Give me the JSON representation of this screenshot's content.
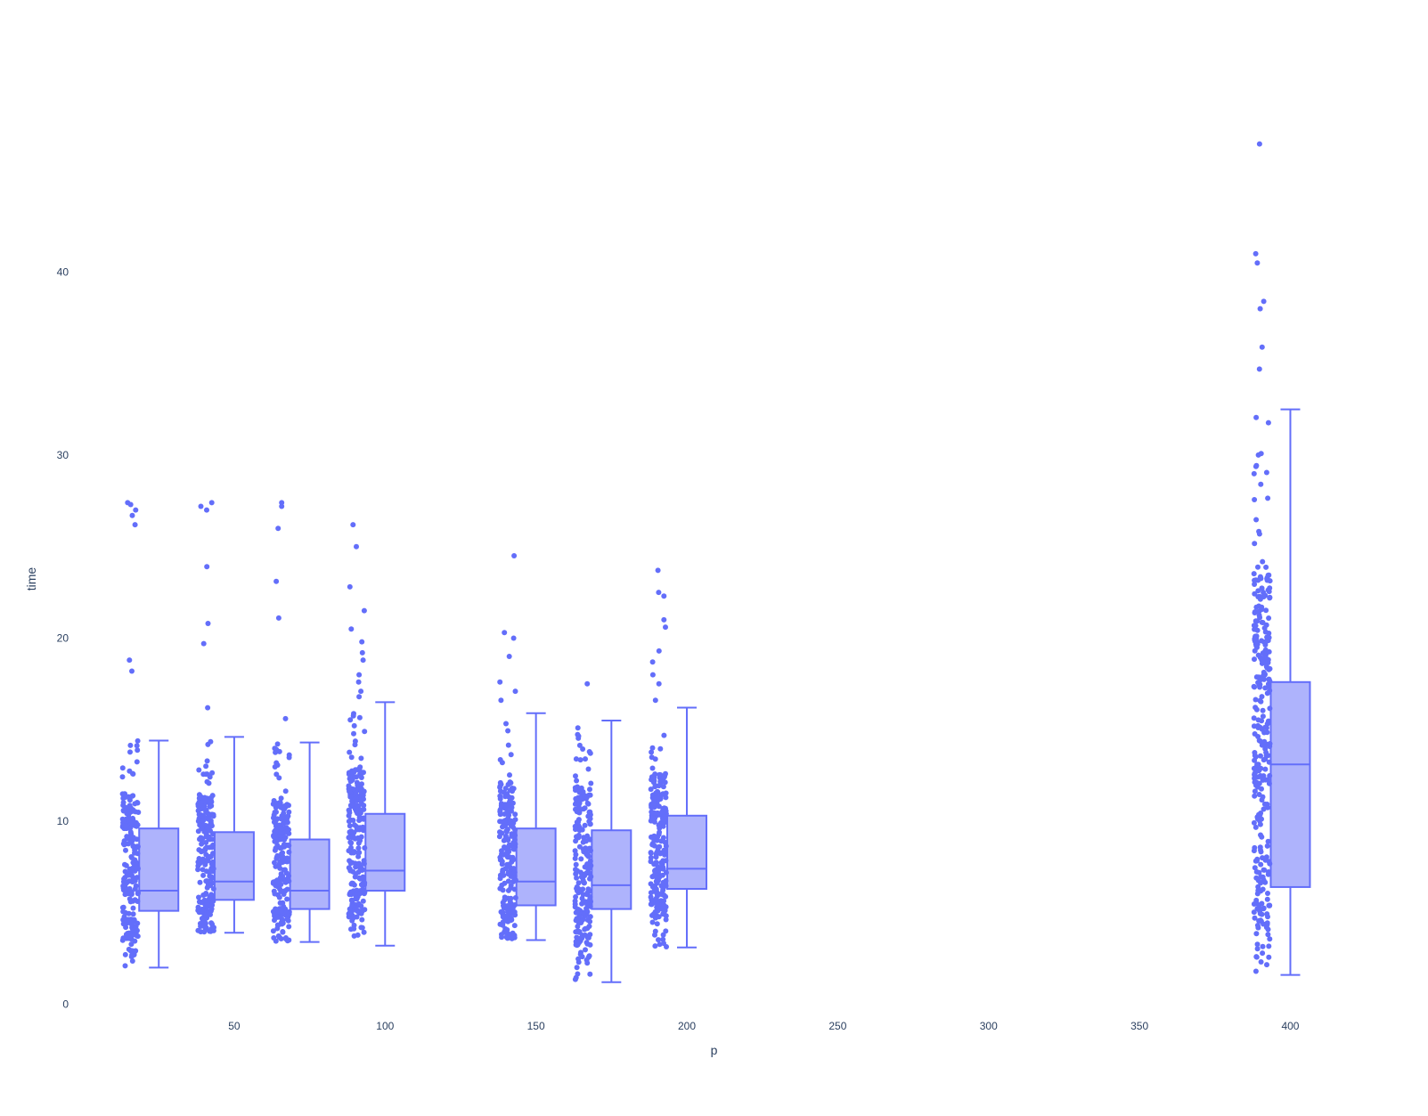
{
  "chart_data": {
    "type": "box",
    "xlabel": "p",
    "ylabel": "time",
    "xlim": [
      -4,
      422
    ],
    "ylim": [
      -1,
      50
    ],
    "x_ticks": [
      50,
      100,
      150,
      200,
      250,
      300,
      350,
      400
    ],
    "y_ticks": [
      0,
      10,
      20,
      30,
      40
    ],
    "grid": false,
    "colors": {
      "line": "#636efa",
      "fill": "#aeb3fc",
      "point": "#636efa"
    },
    "groups": [
      {
        "x": 25,
        "lower_fence": 2.0,
        "q1": 5.1,
        "median": 6.2,
        "q3": 9.6,
        "upper_fence": 14.4,
        "points_center": 15.6,
        "n_points": 220,
        "outliers": [
          27.4,
          27.3,
          27.0,
          26.7,
          26.2,
          18.8,
          18.2
        ]
      },
      {
        "x": 50,
        "lower_fence": 3.9,
        "q1": 5.7,
        "median": 6.7,
        "q3": 9.4,
        "upper_fence": 14.6,
        "points_center": 40.6,
        "n_points": 220,
        "outliers": [
          27.4,
          27.2,
          27.0,
          23.9,
          20.8,
          19.7,
          16.2
        ]
      },
      {
        "x": 75,
        "lower_fence": 3.4,
        "q1": 5.2,
        "median": 6.2,
        "q3": 9.0,
        "upper_fence": 14.3,
        "points_center": 65.6,
        "n_points": 220,
        "outliers": [
          27.4,
          27.2,
          26.0,
          23.1,
          21.1,
          15.6
        ]
      },
      {
        "x": 100,
        "lower_fence": 3.2,
        "q1": 6.2,
        "median": 7.3,
        "q3": 10.4,
        "upper_fence": 16.5,
        "points_center": 90.6,
        "n_points": 240,
        "outliers": [
          26.2,
          25.0,
          22.8,
          21.5,
          20.5,
          19.8,
          19.2,
          18.8,
          18.0,
          17.6,
          17.1,
          16.8
        ]
      },
      {
        "x": 150,
        "lower_fence": 3.5,
        "q1": 5.4,
        "median": 6.7,
        "q3": 9.6,
        "upper_fence": 15.9,
        "points_center": 140.6,
        "n_points": 220,
        "outliers": [
          24.5,
          20.3,
          20.0,
          19.0,
          17.6,
          17.1,
          16.6
        ]
      },
      {
        "x": 175,
        "lower_fence": 1.2,
        "q1": 5.2,
        "median": 6.5,
        "q3": 9.5,
        "upper_fence": 15.5,
        "points_center": 165.6,
        "n_points": 230,
        "outliers": [
          17.5
        ]
      },
      {
        "x": 200,
        "lower_fence": 3.1,
        "q1": 6.3,
        "median": 7.4,
        "q3": 10.3,
        "upper_fence": 16.2,
        "points_center": 190.6,
        "n_points": 230,
        "outliers": [
          23.7,
          22.5,
          22.3,
          21.0,
          20.6,
          19.3,
          18.7,
          18.0,
          17.5,
          16.6
        ]
      },
      {
        "x": 400,
        "lower_fence": 1.6,
        "q1": 6.4,
        "median": 13.1,
        "q3": 17.6,
        "upper_fence": 32.5,
        "points_center": 390.6,
        "n_points": 320,
        "outliers": [
          47.0,
          41.0,
          40.5,
          38.4,
          38.0,
          35.9,
          34.7
        ]
      }
    ]
  }
}
